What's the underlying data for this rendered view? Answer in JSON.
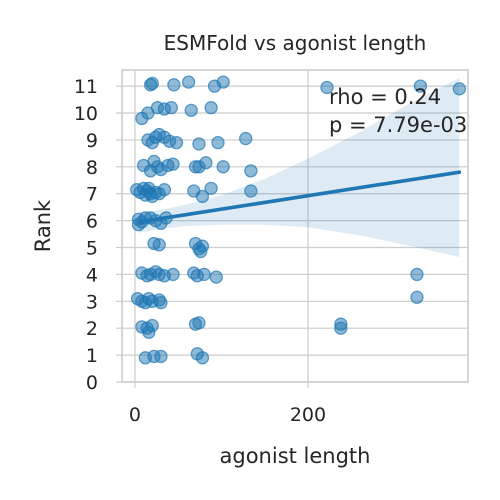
{
  "chart_data": {
    "type": "scatter",
    "title": "ESMFold vs agonist length",
    "xlabel": "agonist length",
    "ylabel": "Rank",
    "xlim": [
      -15,
      385
    ],
    "ylim": [
      0,
      11.6
    ],
    "xticks": [
      0,
      200
    ],
    "yticks": [
      0,
      1,
      2,
      3,
      4,
      5,
      6,
      7,
      8,
      9,
      10,
      11
    ],
    "x_gridlines": [
      0,
      200
    ],
    "grid": true,
    "annotation": {
      "rho_text": "rho = 0.24",
      "p_text": "p = 7.79e-03"
    },
    "regression": {
      "x": [
        5,
        375
      ],
      "y": [
        5.95,
        7.8
      ],
      "ci_upper": [
        [
          5,
          6.25
        ],
        [
          30,
          6.4
        ],
        [
          60,
          6.6
        ],
        [
          100,
          6.95
        ],
        [
          150,
          7.55
        ],
        [
          200,
          8.3
        ],
        [
          260,
          9.3
        ],
        [
          320,
          10.4
        ],
        [
          375,
          11.3
        ]
      ],
      "ci_lower": [
        [
          5,
          5.55
        ],
        [
          30,
          5.7
        ],
        [
          60,
          5.8
        ],
        [
          100,
          5.85
        ],
        [
          150,
          5.85
        ],
        [
          200,
          5.75
        ],
        [
          260,
          5.45
        ],
        [
          320,
          5.05
        ],
        [
          375,
          4.65
        ]
      ]
    },
    "points": [
      [
        20,
        11.1
      ],
      [
        18,
        11.05
      ],
      [
        45,
        11.05
      ],
      [
        62,
        11.15
      ],
      [
        92,
        11.0
      ],
      [
        102,
        11.15
      ],
      [
        222,
        10.95
      ],
      [
        330,
        11.0
      ],
      [
        375,
        10.9
      ],
      [
        8,
        9.8
      ],
      [
        26,
        10.2
      ],
      [
        34,
        10.15
      ],
      [
        42,
        10.2
      ],
      [
        65,
        10.1
      ],
      [
        88,
        10.2
      ],
      [
        15,
        10.0
      ],
      [
        15,
        9.0
      ],
      [
        20,
        8.9
      ],
      [
        24,
        9.1
      ],
      [
        28,
        9.2
      ],
      [
        34,
        9.1
      ],
      [
        40,
        8.95
      ],
      [
        48,
        8.9
      ],
      [
        74,
        8.85
      ],
      [
        96,
        8.9
      ],
      [
        128,
        9.05
      ],
      [
        10,
        8.05
      ],
      [
        18,
        7.85
      ],
      [
        22,
        8.2
      ],
      [
        26,
        8.0
      ],
      [
        30,
        7.9
      ],
      [
        38,
        8.05
      ],
      [
        44,
        8.1
      ],
      [
        70,
        8.0
      ],
      [
        74,
        8.0
      ],
      [
        82,
        8.15
      ],
      [
        102,
        8.0
      ],
      [
        134,
        7.85
      ],
      [
        2,
        7.15
      ],
      [
        6,
        7.05
      ],
      [
        10,
        7.2
      ],
      [
        12,
        6.95
      ],
      [
        14,
        7.1
      ],
      [
        16,
        7.2
      ],
      [
        18,
        7.0
      ],
      [
        20,
        6.9
      ],
      [
        24,
        7.05
      ],
      [
        28,
        7.0
      ],
      [
        34,
        7.15
      ],
      [
        68,
        7.1
      ],
      [
        78,
        6.9
      ],
      [
        88,
        7.2
      ],
      [
        134,
        7.1
      ],
      [
        4,
        6.05
      ],
      [
        8,
        5.95
      ],
      [
        12,
        6.1
      ],
      [
        18,
        6.1
      ],
      [
        24,
        6.0
      ],
      [
        30,
        5.9
      ],
      [
        36,
        6.1
      ],
      [
        4,
        5.85
      ],
      [
        22,
        5.15
      ],
      [
        28,
        5.1
      ],
      [
        70,
        5.15
      ],
      [
        76,
        4.85
      ],
      [
        78,
        5.05
      ],
      [
        74,
        4.95
      ],
      [
        8,
        4.05
      ],
      [
        14,
        3.95
      ],
      [
        18,
        4.0
      ],
      [
        24,
        4.1
      ],
      [
        28,
        4.0
      ],
      [
        34,
        3.95
      ],
      [
        44,
        4.0
      ],
      [
        68,
        4.05
      ],
      [
        72,
        3.95
      ],
      [
        80,
        4.0
      ],
      [
        94,
        3.9
      ],
      [
        326,
        4.0
      ],
      [
        3,
        3.1
      ],
      [
        8,
        3.0
      ],
      [
        12,
        2.95
      ],
      [
        16,
        3.1
      ],
      [
        20,
        3.0
      ],
      [
        28,
        3.05
      ],
      [
        30,
        2.95
      ],
      [
        326,
        3.15
      ],
      [
        8,
        2.05
      ],
      [
        14,
        2.0
      ],
      [
        16,
        1.85
      ],
      [
        20,
        2.1
      ],
      [
        70,
        2.15
      ],
      [
        74,
        2.2
      ],
      [
        238,
        2.0
      ],
      [
        238,
        2.15
      ],
      [
        12,
        0.9
      ],
      [
        22,
        0.95
      ],
      [
        30,
        0.95
      ],
      [
        72,
        1.05
      ],
      [
        78,
        0.9
      ]
    ]
  }
}
